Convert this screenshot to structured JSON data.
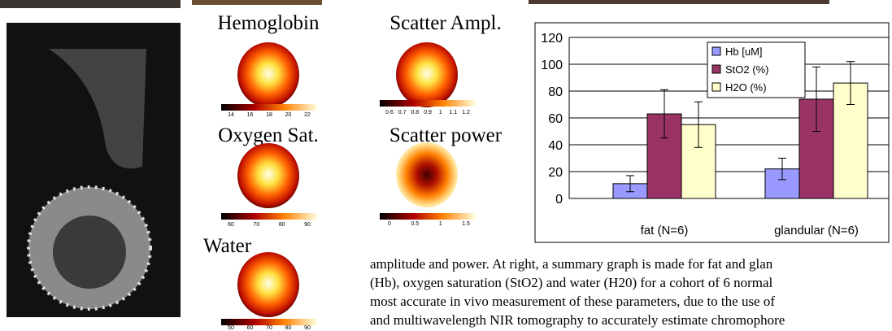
{
  "panels": [
    {
      "label": "Hemoglobin",
      "colorbar_ticks": [
        14,
        16,
        18,
        20,
        22
      ]
    },
    {
      "label": "Scatter Ampl.",
      "colorbar_ticks": [
        0.6,
        0.7,
        0.8,
        0.9,
        1,
        1.1,
        1.2
      ]
    },
    {
      "label": "Oxygen Sat.",
      "colorbar_ticks": [
        60,
        70,
        80,
        90
      ]
    },
    {
      "label": "Scatter power",
      "colorbar_ticks": [
        0,
        0.5,
        1,
        1.5
      ]
    },
    {
      "label": "Water",
      "colorbar_ticks": [
        50,
        60,
        70,
        80,
        90
      ]
    }
  ],
  "chart_data": {
    "type": "bar",
    "categories": [
      "fat (N=6)",
      "glandular (N=6)"
    ],
    "series": [
      {
        "name": "Hb [uM]",
        "color": "#9999ff",
        "values": [
          11,
          22
        ],
        "errors": [
          6,
          8
        ]
      },
      {
        "name": "StO2 (%)",
        "color": "#993366",
        "values": [
          63,
          74
        ],
        "errors": [
          18,
          24
        ]
      },
      {
        "name": "H2O (%)",
        "color": "#ffffcc",
        "values": [
          55,
          86
        ],
        "errors": [
          17,
          16
        ]
      }
    ],
    "ylim": [
      0,
      120
    ],
    "yticks": [
      0,
      20,
      40,
      60,
      80,
      100,
      120
    ],
    "grid": true,
    "legend": "top-right"
  },
  "caption": {
    "lines": [
      "amplitude and power.    At right, a summary graph is made for fat and glan",
      "(Hb), oxygen saturation (StO2) and water (H20) for a cohort of 6 normal",
      "most accurate in vivo measurement of these parameters, due to the use of",
      "and multiwavelength NIR tomography to accurately estimate chromophore"
    ]
  }
}
